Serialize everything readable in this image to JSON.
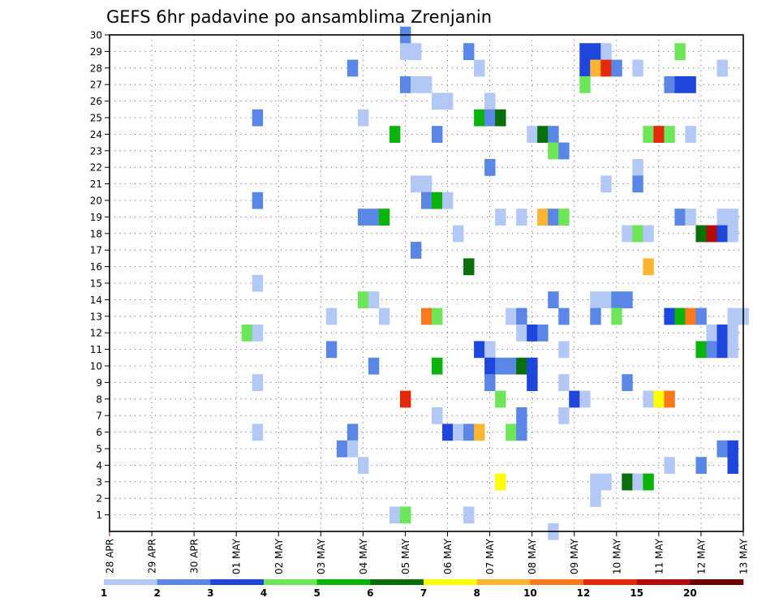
{
  "chart_data": {
    "type": "heatmap",
    "title": "GEFS 6hr padavine po ansamblima Zrenjanin",
    "xlabel": "",
    "ylabel": "",
    "grid": true,
    "ylim": [
      0,
      30
    ],
    "y_ticks": [
      "1",
      "2",
      "3",
      "4",
      "5",
      "6",
      "7",
      "8",
      "9",
      "10",
      "11",
      "12",
      "13",
      "14",
      "15",
      "16",
      "17",
      "18",
      "19",
      "20",
      "21",
      "22",
      "23",
      "24",
      "25",
      "26",
      "27",
      "28",
      "29",
      "30"
    ],
    "x_ticks": [
      "28 APR",
      "29 APR",
      "30 APR",
      "01 MAY",
      "02 MAY",
      "03 MAY",
      "04 MAY",
      "05 MAY",
      "06 MAY",
      "07 MAY",
      "08 MAY",
      "09 MAY",
      "10 MAY",
      "11 MAY",
      "12 MAY",
      "13 MAY"
    ],
    "x_unit": "6h steps from 28 APR 00z",
    "legend": {
      "placement": "bottom",
      "labels": [
        "1",
        "2",
        "3",
        "4",
        "5",
        "6",
        "7",
        "8",
        "10",
        "12",
        "15",
        "20"
      ],
      "colors": [
        "#b4c8f5",
        "#5a87e6",
        "#1e46dc",
        "#6ee65a",
        "#0ab40a",
        "#0a6e0a",
        "#ffff00",
        "#ffb432",
        "#ff781e",
        "#e6280a",
        "#b40a0a",
        "#6e0000"
      ]
    },
    "cells": [
      {
        "member": 30,
        "step": 28,
        "level": 1
      },
      {
        "member": 29,
        "step": 28,
        "level": 0
      },
      {
        "member": 29,
        "step": 29,
        "level": 0
      },
      {
        "member": 29,
        "step": 34,
        "level": 1
      },
      {
        "member": 29,
        "step": 45,
        "level": 2
      },
      {
        "member": 29,
        "step": 46,
        "level": 2
      },
      {
        "member": 29,
        "step": 47,
        "level": 0
      },
      {
        "member": 29,
        "step": 54,
        "level": 3
      },
      {
        "member": 28,
        "step": 23,
        "level": 1
      },
      {
        "member": 28,
        "step": 35,
        "level": 0
      },
      {
        "member": 28,
        "step": 45,
        "level": 2
      },
      {
        "member": 28,
        "step": 46,
        "level": 7
      },
      {
        "member": 28,
        "step": 47,
        "level": 9
      },
      {
        "member": 28,
        "step": 48,
        "level": 1
      },
      {
        "member": 28,
        "step": 50,
        "level": 0
      },
      {
        "member": 28,
        "step": 58,
        "level": 0
      },
      {
        "member": 27,
        "step": 28,
        "level": 1
      },
      {
        "member": 27,
        "step": 29,
        "level": 0
      },
      {
        "member": 27,
        "step": 30,
        "level": 0
      },
      {
        "member": 27,
        "step": 45,
        "level": 3
      },
      {
        "member": 27,
        "step": 53,
        "level": 1
      },
      {
        "member": 27,
        "step": 54,
        "level": 2
      },
      {
        "member": 27,
        "step": 55,
        "level": 2
      },
      {
        "member": 26,
        "step": 31,
        "level": 0
      },
      {
        "member": 26,
        "step": 32,
        "level": 0
      },
      {
        "member": 26,
        "step": 36,
        "level": 0
      },
      {
        "member": 25,
        "step": 14,
        "level": 1
      },
      {
        "member": 25,
        "step": 24,
        "level": 0
      },
      {
        "member": 25,
        "step": 35,
        "level": 4
      },
      {
        "member": 25,
        "step": 36,
        "level": 1
      },
      {
        "member": 25,
        "step": 37,
        "level": 5
      },
      {
        "member": 24,
        "step": 27,
        "level": 4
      },
      {
        "member": 24,
        "step": 31,
        "level": 1
      },
      {
        "member": 24,
        "step": 40,
        "level": 0
      },
      {
        "member": 24,
        "step": 41,
        "level": 5
      },
      {
        "member": 24,
        "step": 42,
        "level": 1
      },
      {
        "member": 24,
        "step": 51,
        "level": 3
      },
      {
        "member": 24,
        "step": 52,
        "level": 9
      },
      {
        "member": 24,
        "step": 53,
        "level": 3
      },
      {
        "member": 24,
        "step": 55,
        "level": 0
      },
      {
        "member": 23,
        "step": 42,
        "level": 3
      },
      {
        "member": 23,
        "step": 43,
        "level": 1
      },
      {
        "member": 22,
        "step": 36,
        "level": 1
      },
      {
        "member": 22,
        "step": 50,
        "level": 0
      },
      {
        "member": 21,
        "step": 29,
        "level": 0
      },
      {
        "member": 21,
        "step": 30,
        "level": 0
      },
      {
        "member": 21,
        "step": 47,
        "level": 0
      },
      {
        "member": 21,
        "step": 50,
        "level": 1
      },
      {
        "member": 20,
        "step": 14,
        "level": 1
      },
      {
        "member": 20,
        "step": 30,
        "level": 1
      },
      {
        "member": 20,
        "step": 31,
        "level": 4
      },
      {
        "member": 20,
        "step": 32,
        "level": 0
      },
      {
        "member": 19,
        "step": 24,
        "level": 1
      },
      {
        "member": 19,
        "step": 25,
        "level": 1
      },
      {
        "member": 19,
        "step": 26,
        "level": 4
      },
      {
        "member": 19,
        "step": 37,
        "level": 0
      },
      {
        "member": 19,
        "step": 39,
        "level": 0
      },
      {
        "member": 19,
        "step": 41,
        "level": 7
      },
      {
        "member": 19,
        "step": 42,
        "level": 1
      },
      {
        "member": 19,
        "step": 43,
        "level": 3
      },
      {
        "member": 19,
        "step": 54,
        "level": 1
      },
      {
        "member": 19,
        "step": 55,
        "level": 0
      },
      {
        "member": 19,
        "step": 58,
        "level": 0
      },
      {
        "member": 19,
        "step": 59,
        "level": 0
      },
      {
        "member": 18,
        "step": 33,
        "level": 0
      },
      {
        "member": 18,
        "step": 49,
        "level": 0
      },
      {
        "member": 18,
        "step": 50,
        "level": 3
      },
      {
        "member": 18,
        "step": 51,
        "level": 0
      },
      {
        "member": 18,
        "step": 56,
        "level": 5
      },
      {
        "member": 18,
        "step": 57,
        "level": 10
      },
      {
        "member": 18,
        "step": 58,
        "level": 2
      },
      {
        "member": 18,
        "step": 59,
        "level": 0
      },
      {
        "member": 17,
        "step": 29,
        "level": 1
      },
      {
        "member": 16,
        "step": 34,
        "level": 5
      },
      {
        "member": 16,
        "step": 51,
        "level": 7
      },
      {
        "member": 15,
        "step": 14,
        "level": 0
      },
      {
        "member": 14,
        "step": 24,
        "level": 3
      },
      {
        "member": 14,
        "step": 25,
        "level": 0
      },
      {
        "member": 14,
        "step": 42,
        "level": 1
      },
      {
        "member": 14,
        "step": 46,
        "level": 0
      },
      {
        "member": 14,
        "step": 47,
        "level": 0
      },
      {
        "member": 14,
        "step": 48,
        "level": 1
      },
      {
        "member": 14,
        "step": 49,
        "level": 1
      },
      {
        "member": 13,
        "step": 21,
        "level": 0
      },
      {
        "member": 13,
        "step": 26,
        "level": 0
      },
      {
        "member": 13,
        "step": 30,
        "level": 8
      },
      {
        "member": 13,
        "step": 31,
        "level": 3
      },
      {
        "member": 13,
        "step": 38,
        "level": 0
      },
      {
        "member": 13,
        "step": 39,
        "level": 1
      },
      {
        "member": 13,
        "step": 43,
        "level": 1
      },
      {
        "member": 13,
        "step": 46,
        "level": 1
      },
      {
        "member": 13,
        "step": 48,
        "level": 3
      },
      {
        "member": 13,
        "step": 53,
        "level": 2
      },
      {
        "member": 13,
        "step": 54,
        "level": 4
      },
      {
        "member": 13,
        "step": 55,
        "level": 8
      },
      {
        "member": 13,
        "step": 56,
        "level": 1
      },
      {
        "member": 13,
        "step": 59,
        "level": 0
      },
      {
        "member": 13,
        "step": 60,
        "level": 0
      },
      {
        "member": 12,
        "step": 13,
        "level": 3
      },
      {
        "member": 12,
        "step": 14,
        "level": 0
      },
      {
        "member": 12,
        "step": 39,
        "level": 0
      },
      {
        "member": 12,
        "step": 40,
        "level": 2
      },
      {
        "member": 12,
        "step": 41,
        "level": 1
      },
      {
        "member": 12,
        "step": 57,
        "level": 0
      },
      {
        "member": 12,
        "step": 58,
        "level": 2
      },
      {
        "member": 12,
        "step": 59,
        "level": 0
      },
      {
        "member": 11,
        "step": 21,
        "level": 1
      },
      {
        "member": 11,
        "step": 35,
        "level": 2
      },
      {
        "member": 11,
        "step": 36,
        "level": 0
      },
      {
        "member": 11,
        "step": 43,
        "level": 0
      },
      {
        "member": 11,
        "step": 56,
        "level": 4
      },
      {
        "member": 11,
        "step": 57,
        "level": 1
      },
      {
        "member": 11,
        "step": 58,
        "level": 2
      },
      {
        "member": 11,
        "step": 59,
        "level": 0
      },
      {
        "member": 10,
        "step": 25,
        "level": 1
      },
      {
        "member": 10,
        "step": 31,
        "level": 4
      },
      {
        "member": 10,
        "step": 36,
        "level": 2
      },
      {
        "member": 10,
        "step": 37,
        "level": 1
      },
      {
        "member": 10,
        "step": 38,
        "level": 1
      },
      {
        "member": 10,
        "step": 39,
        "level": 5
      },
      {
        "member": 10,
        "step": 40,
        "level": 2
      },
      {
        "member": 9,
        "step": 14,
        "level": 0
      },
      {
        "member": 9,
        "step": 36,
        "level": 1
      },
      {
        "member": 9,
        "step": 40,
        "level": 2
      },
      {
        "member": 9,
        "step": 43,
        "level": 0
      },
      {
        "member": 9,
        "step": 49,
        "level": 1
      },
      {
        "member": 8,
        "step": 28,
        "level": 9
      },
      {
        "member": 8,
        "step": 37,
        "level": 3
      },
      {
        "member": 8,
        "step": 44,
        "level": 2
      },
      {
        "member": 8,
        "step": 45,
        "level": 0
      },
      {
        "member": 8,
        "step": 51,
        "level": 0
      },
      {
        "member": 8,
        "step": 52,
        "level": 6
      },
      {
        "member": 8,
        "step": 53,
        "level": 8
      },
      {
        "member": 7,
        "step": 31,
        "level": 0
      },
      {
        "member": 7,
        "step": 39,
        "level": 1
      },
      {
        "member": 7,
        "step": 43,
        "level": 0
      },
      {
        "member": 6,
        "step": 14,
        "level": 0
      },
      {
        "member": 6,
        "step": 23,
        "level": 1
      },
      {
        "member": 6,
        "step": 32,
        "level": 2
      },
      {
        "member": 6,
        "step": 33,
        "level": 0
      },
      {
        "member": 6,
        "step": 34,
        "level": 1
      },
      {
        "member": 6,
        "step": 35,
        "level": 7
      },
      {
        "member": 6,
        "step": 38,
        "level": 3
      },
      {
        "member": 6,
        "step": 39,
        "level": 1
      },
      {
        "member": 5,
        "step": 22,
        "level": 1
      },
      {
        "member": 5,
        "step": 23,
        "level": 0
      },
      {
        "member": 5,
        "step": 58,
        "level": 1
      },
      {
        "member": 5,
        "step": 59,
        "level": 2
      },
      {
        "member": 4,
        "step": 24,
        "level": 0
      },
      {
        "member": 4,
        "step": 53,
        "level": 0
      },
      {
        "member": 4,
        "step": 56,
        "level": 1
      },
      {
        "member": 4,
        "step": 59,
        "level": 2
      },
      {
        "member": 3,
        "step": 37,
        "level": 6
      },
      {
        "member": 3,
        "step": 46,
        "level": 0
      },
      {
        "member": 3,
        "step": 47,
        "level": 0
      },
      {
        "member": 3,
        "step": 49,
        "level": 5
      },
      {
        "member": 3,
        "step": 50,
        "level": 0
      },
      {
        "member": 3,
        "step": 51,
        "level": 4
      },
      {
        "member": 2,
        "step": 46,
        "level": 0
      },
      {
        "member": 1,
        "step": 27,
        "level": 0
      },
      {
        "member": 1,
        "step": 28,
        "level": 3
      },
      {
        "member": 1,
        "step": 34,
        "level": 0
      },
      {
        "member": 0,
        "step": 42,
        "level": 0
      }
    ]
  }
}
